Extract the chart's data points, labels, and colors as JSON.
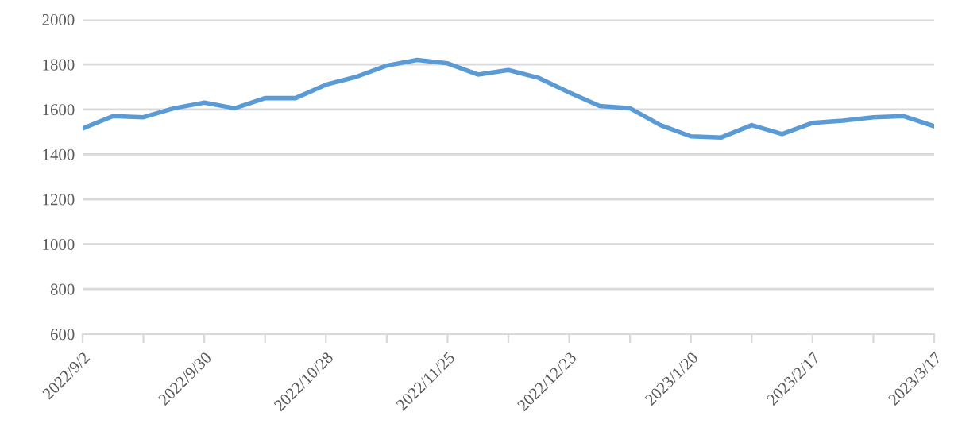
{
  "chart_data": {
    "type": "line",
    "x": [
      "2022-09-02",
      "2022-09-09",
      "2022-09-16",
      "2022-09-23",
      "2022-09-30",
      "2022-10-07",
      "2022-10-14",
      "2022-10-21",
      "2022-10-28",
      "2022-11-04",
      "2022-11-11",
      "2022-11-18",
      "2022-11-25",
      "2022-12-02",
      "2022-12-09",
      "2022-12-16",
      "2022-12-23",
      "2022-12-30",
      "2023-01-06",
      "2023-01-13",
      "2023-01-20",
      "2023-01-27",
      "2023-02-03",
      "2023-02-10",
      "2023-02-17",
      "2023-02-24",
      "2023-03-03",
      "2023-03-10",
      "2023-03-17"
    ],
    "series": [
      {
        "color": "#5b9bd5",
        "values": [
          1515,
          1570,
          1565,
          1605,
          1630,
          1605,
          1650,
          1650,
          1710,
          1745,
          1795,
          1820,
          1805,
          1755,
          1775,
          1740,
          1675,
          1615,
          1605,
          1530,
          1480,
          1475,
          1530,
          1490,
          1540,
          1550,
          1565,
          1570,
          1525
        ]
      }
    ],
    "xlim": [
      "2022-09-02",
      "2023-03-17"
    ],
    "xticks": [
      {
        "value": "2022-09-02",
        "label": "2022/9/2"
      },
      {
        "value": "2022-09-16",
        "label": null
      },
      {
        "value": "2022-09-30",
        "label": "2022/9/30"
      },
      {
        "value": "2022-10-14",
        "label": null
      },
      {
        "value": "2022-10-28",
        "label": "2022/10/28"
      },
      {
        "value": "2022-11-11",
        "label": null
      },
      {
        "value": "2022-11-25",
        "label": "2022/11/25"
      },
      {
        "value": "2022-12-09",
        "label": null
      },
      {
        "value": "2022-12-23",
        "label": "2022/12/23"
      },
      {
        "value": "2023-01-06",
        "label": null
      },
      {
        "value": "2023-01-20",
        "label": "2023/1/20"
      },
      {
        "value": "2023-02-03",
        "label": null
      },
      {
        "value": "2023-02-17",
        "label": "2023/2/17"
      },
      {
        "value": "2023-03-03",
        "label": null
      },
      {
        "value": "2023-03-17",
        "label": "2023/3/17"
      }
    ],
    "ylim": [
      600,
      2000
    ],
    "yticks": [
      600,
      800,
      1000,
      1200,
      1400,
      1600,
      1800,
      2000
    ],
    "grid": "y",
    "marker": "none",
    "line_style": "solid",
    "legend": false
  }
}
